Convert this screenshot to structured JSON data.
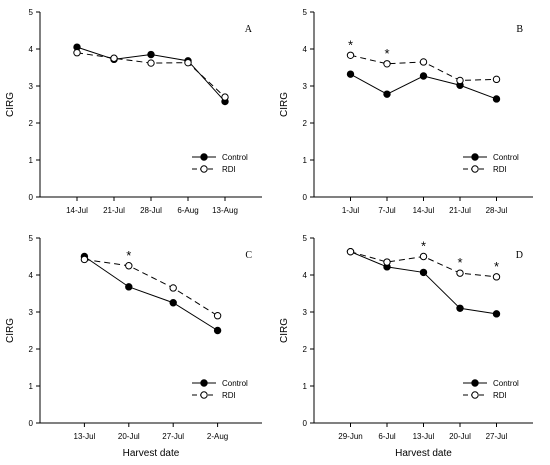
{
  "chart_data": [
    {
      "type": "line",
      "panel_label": "A",
      "categories": [
        "14-Jul",
        "21-Jul",
        "28-Jul",
        "6-Aug",
        "13-Aug"
      ],
      "ylabel": "CIRG",
      "xlabel": "",
      "ylim": [
        0,
        5
      ],
      "yticks": [
        0,
        1,
        2,
        3,
        4,
        5
      ],
      "legend_position": "bottom-right",
      "series": [
        {
          "name": "Control",
          "marker": "filled-circle",
          "line": "solid",
          "values": [
            4.05,
            3.72,
            3.85,
            3.68,
            2.58
          ]
        },
        {
          "name": "RDI",
          "marker": "open-circle",
          "line": "dashed",
          "values": [
            3.9,
            3.75,
            3.62,
            3.63,
            2.7
          ]
        }
      ],
      "significance": []
    },
    {
      "type": "line",
      "panel_label": "B",
      "categories": [
        "1-Jul",
        "7-Jul",
        "14-Jul",
        "21-Jul",
        "28-Jul"
      ],
      "ylabel": "CIRG",
      "xlabel": "",
      "ylim": [
        0,
        5
      ],
      "yticks": [
        0,
        1,
        2,
        3,
        4,
        5
      ],
      "legend_position": "bottom-right",
      "series": [
        {
          "name": "Control",
          "marker": "filled-circle",
          "line": "solid",
          "values": [
            3.32,
            2.78,
            3.27,
            3.02,
            2.65
          ]
        },
        {
          "name": "RDI",
          "marker": "open-circle",
          "line": "dashed",
          "values": [
            3.83,
            3.6,
            3.65,
            3.15,
            3.18
          ]
        }
      ],
      "significance": [
        {
          "index": 0,
          "text": "*"
        },
        {
          "index": 1,
          "text": "*"
        }
      ]
    },
    {
      "type": "line",
      "panel_label": "C",
      "categories": [
        "13-Jul",
        "20-Jul",
        "27-Jul",
        "2-Aug"
      ],
      "ylabel": "CIRG",
      "xlabel": "Harvest date",
      "ylim": [
        0,
        5
      ],
      "yticks": [
        0,
        1,
        2,
        3,
        4,
        5
      ],
      "legend_position": "bottom-right",
      "series": [
        {
          "name": "Control",
          "marker": "filled-circle",
          "line": "solid",
          "values": [
            4.5,
            3.68,
            3.25,
            2.5
          ]
        },
        {
          "name": "RDI",
          "marker": "open-circle",
          "line": "dashed",
          "values": [
            4.42,
            4.25,
            3.65,
            2.9
          ]
        }
      ],
      "significance": [
        {
          "index": 1,
          "text": "*"
        }
      ]
    },
    {
      "type": "line",
      "panel_label": "D",
      "categories": [
        "29-Jun",
        "6-Jul",
        "13-Jul",
        "20-Jul",
        "27-Jul"
      ],
      "ylabel": "CIRG",
      "xlabel": "Harvest date",
      "ylim": [
        0,
        5
      ],
      "yticks": [
        0,
        1,
        2,
        3,
        4,
        5
      ],
      "legend_position": "bottom-right",
      "series": [
        {
          "name": "Control",
          "marker": "filled-circle",
          "line": "solid",
          "values": [
            4.63,
            4.22,
            4.07,
            3.1,
            2.95
          ]
        },
        {
          "name": "RDI",
          "marker": "open-circle",
          "line": "dashed",
          "values": [
            4.63,
            4.35,
            4.5,
            4.05,
            3.95
          ]
        }
      ],
      "significance": [
        {
          "index": 2,
          "text": "*"
        },
        {
          "index": 3,
          "text": "*"
        },
        {
          "index": 4,
          "text": "*"
        }
      ]
    }
  ]
}
